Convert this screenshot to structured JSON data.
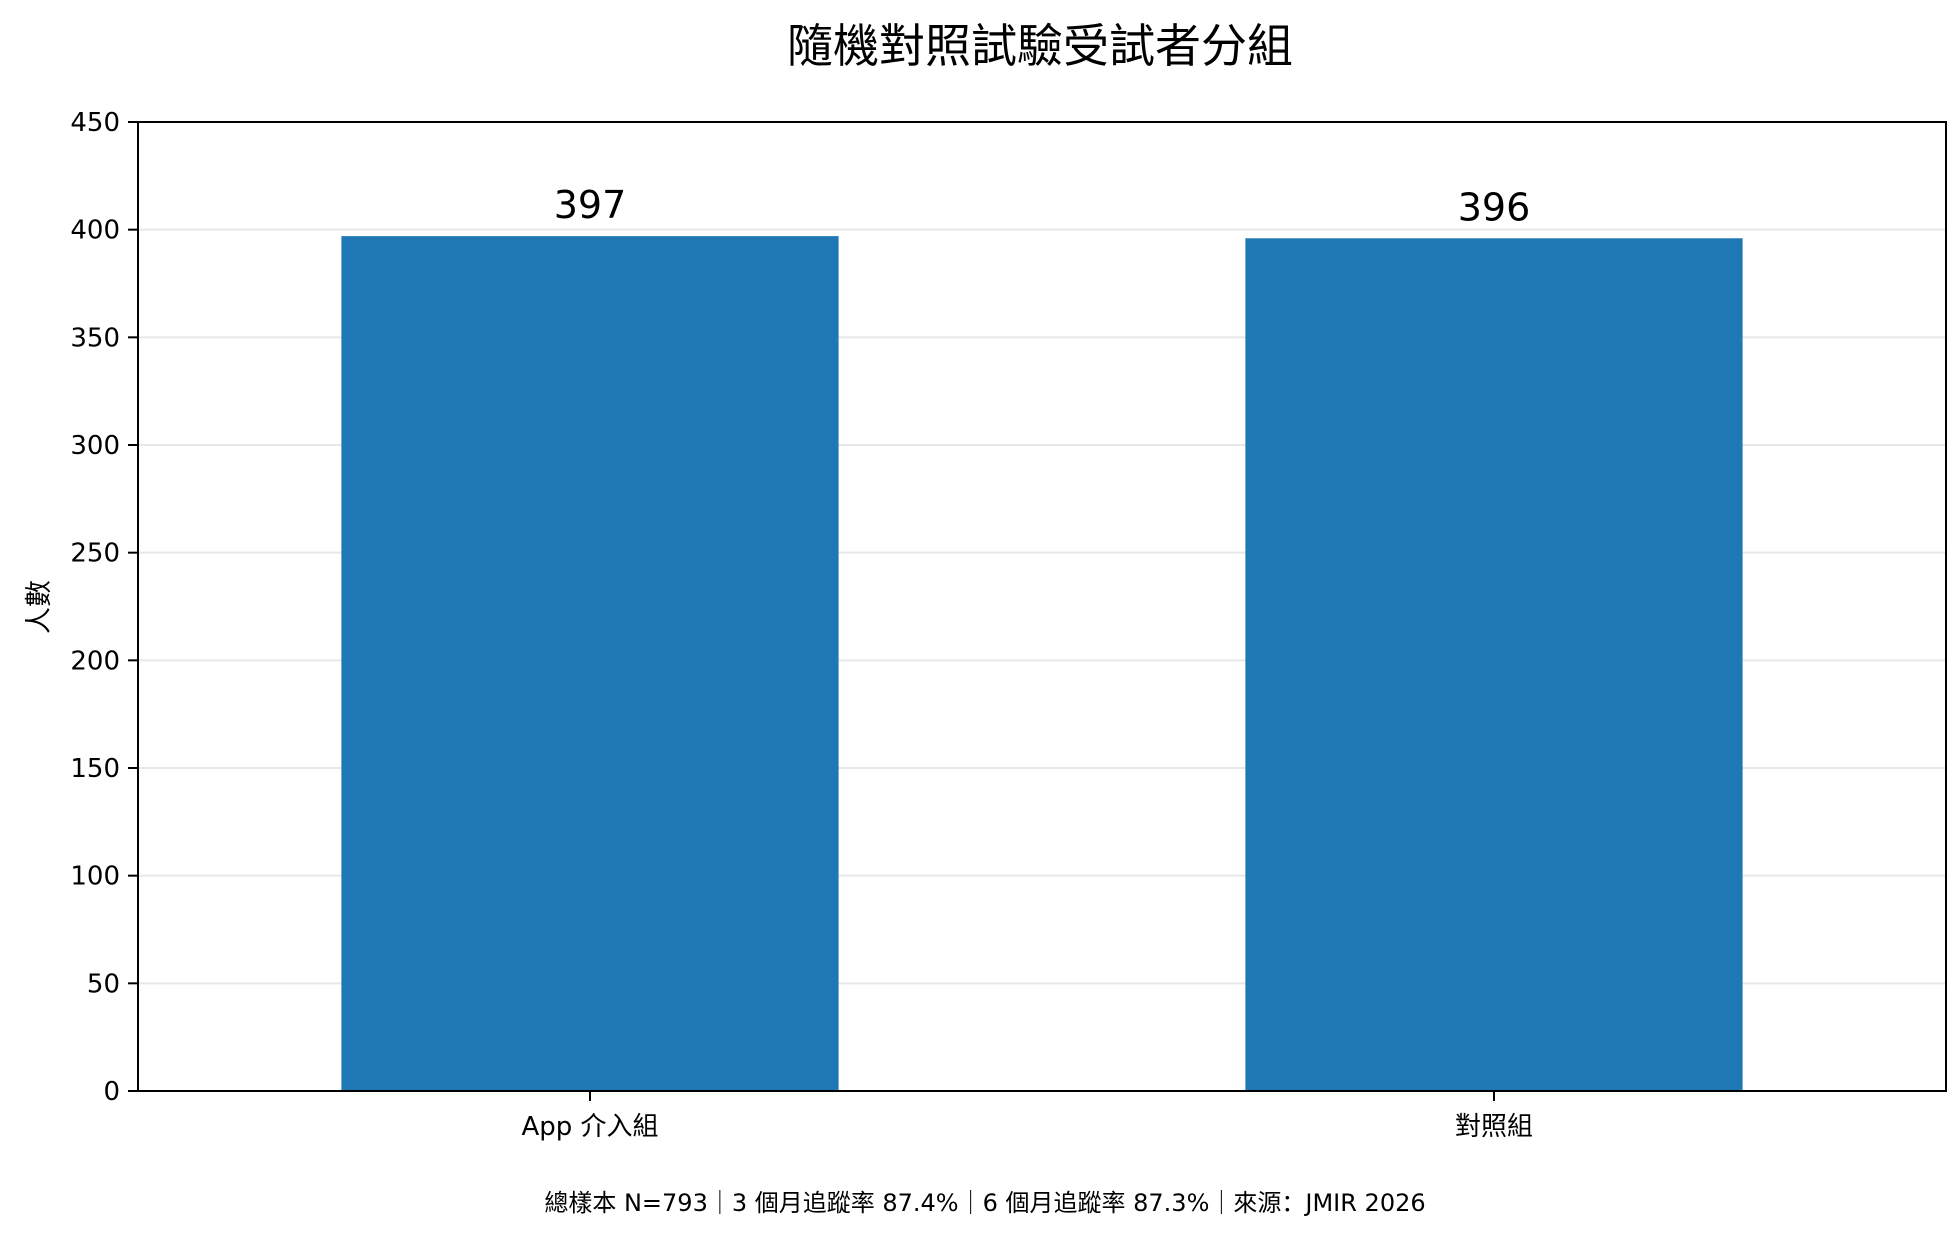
{
  "chart_data": {
    "type": "bar",
    "title": "隨機對照試驗受試者分組",
    "xlabel": "",
    "ylabel": "人數",
    "categories": [
      "App 介入組",
      "對照組"
    ],
    "values": [
      397,
      396
    ],
    "data_labels": [
      "397",
      "396"
    ],
    "ylim": [
      0,
      450
    ],
    "yticks": [
      0,
      50,
      100,
      150,
      200,
      250,
      300,
      350,
      400,
      450
    ],
    "grid": "horizontal",
    "legend": "none",
    "footnote": "總樣本 N=793｜3 個月追蹤率 87.4%｜6 個月追蹤率 87.3%｜來源：JMIR 2026"
  },
  "colors": {
    "bar": "#1f77b4",
    "grid": "#e8e8e8",
    "axis": "#000000"
  }
}
